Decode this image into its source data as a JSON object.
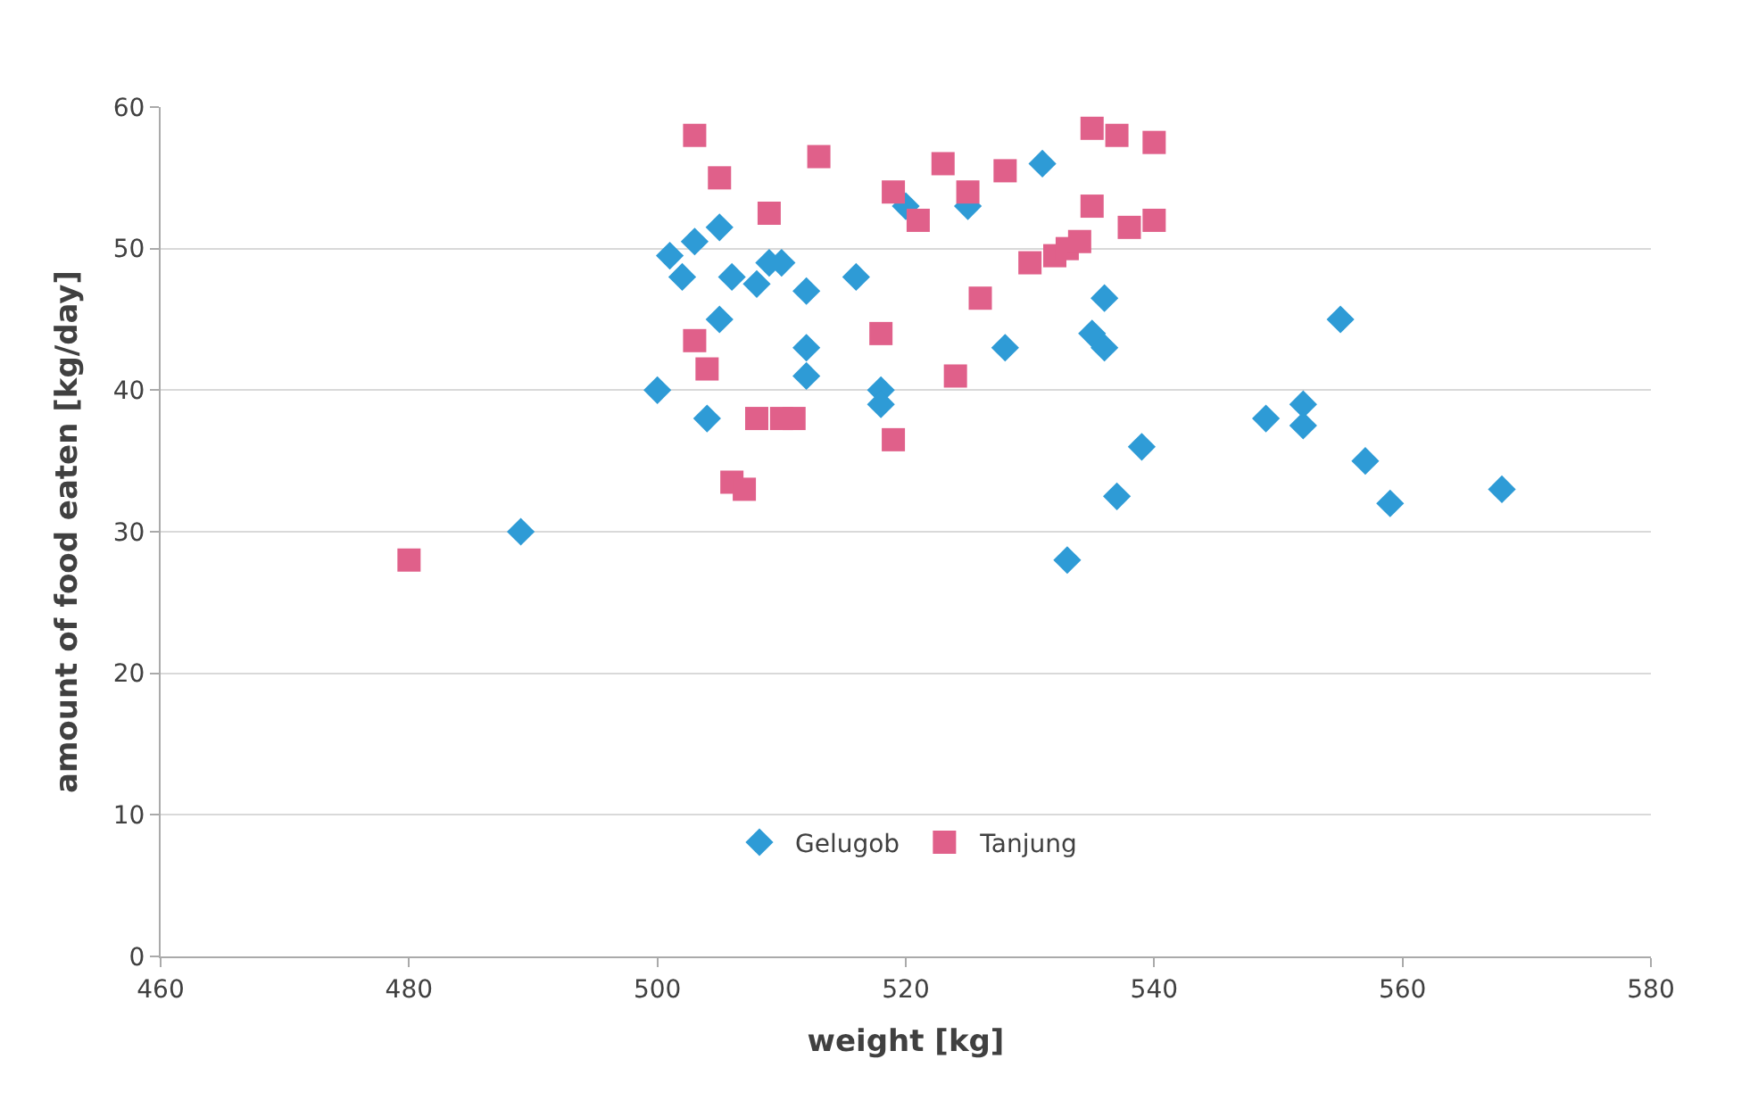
{
  "chart_data": {
    "type": "scatter",
    "xlabel": "weight [kg]",
    "ylabel": "amount of food eaten [kg/day]",
    "xlim": [
      460,
      580
    ],
    "xticks": [
      460,
      480,
      500,
      520,
      540,
      560,
      580
    ],
    "ylim": [
      0,
      60
    ],
    "yticks": [
      0,
      10,
      20,
      30,
      40,
      50,
      60
    ],
    "grid": "y",
    "legend": "bottom",
    "series": [
      {
        "name": "Gelugob",
        "color": "#2e9bd6",
        "marker": "diamond",
        "x": [
          489,
          500,
          501,
          502,
          503,
          504,
          505,
          505,
          506,
          508,
          509,
          510,
          512,
          512,
          512,
          516,
          518,
          518,
          520,
          525,
          528,
          531,
          533,
          535,
          536,
          536,
          537,
          539,
          549,
          552,
          552,
          555,
          557,
          559,
          568
        ],
        "values": [
          30,
          40,
          49.5,
          48,
          50.5,
          38,
          45,
          51.5,
          48,
          47.5,
          49,
          49,
          47,
          43,
          41,
          48,
          40,
          39,
          53,
          53,
          43,
          56,
          28,
          44,
          46.5,
          43,
          32.5,
          36,
          38,
          39,
          37.5,
          45,
          35,
          32,
          33
        ]
      },
      {
        "name": "Tanjung",
        "color": "#e0608a",
        "marker": "square",
        "x": [
          480,
          503,
          503,
          504,
          505,
          506,
          507,
          508,
          509,
          510,
          511,
          513,
          518,
          519,
          519,
          521,
          523,
          524,
          525,
          526,
          528,
          530,
          532,
          533,
          534,
          535,
          535,
          537,
          538,
          540,
          540
        ],
        "values": [
          28,
          58,
          43.5,
          41.5,
          55,
          33.5,
          33,
          38,
          52.5,
          38,
          38,
          56.5,
          44,
          54,
          36.5,
          52,
          56,
          41,
          54,
          46.5,
          55.5,
          49,
          49.5,
          50,
          50.5,
          58.5,
          53,
          58,
          51.5,
          57.5,
          52
        ]
      }
    ]
  }
}
